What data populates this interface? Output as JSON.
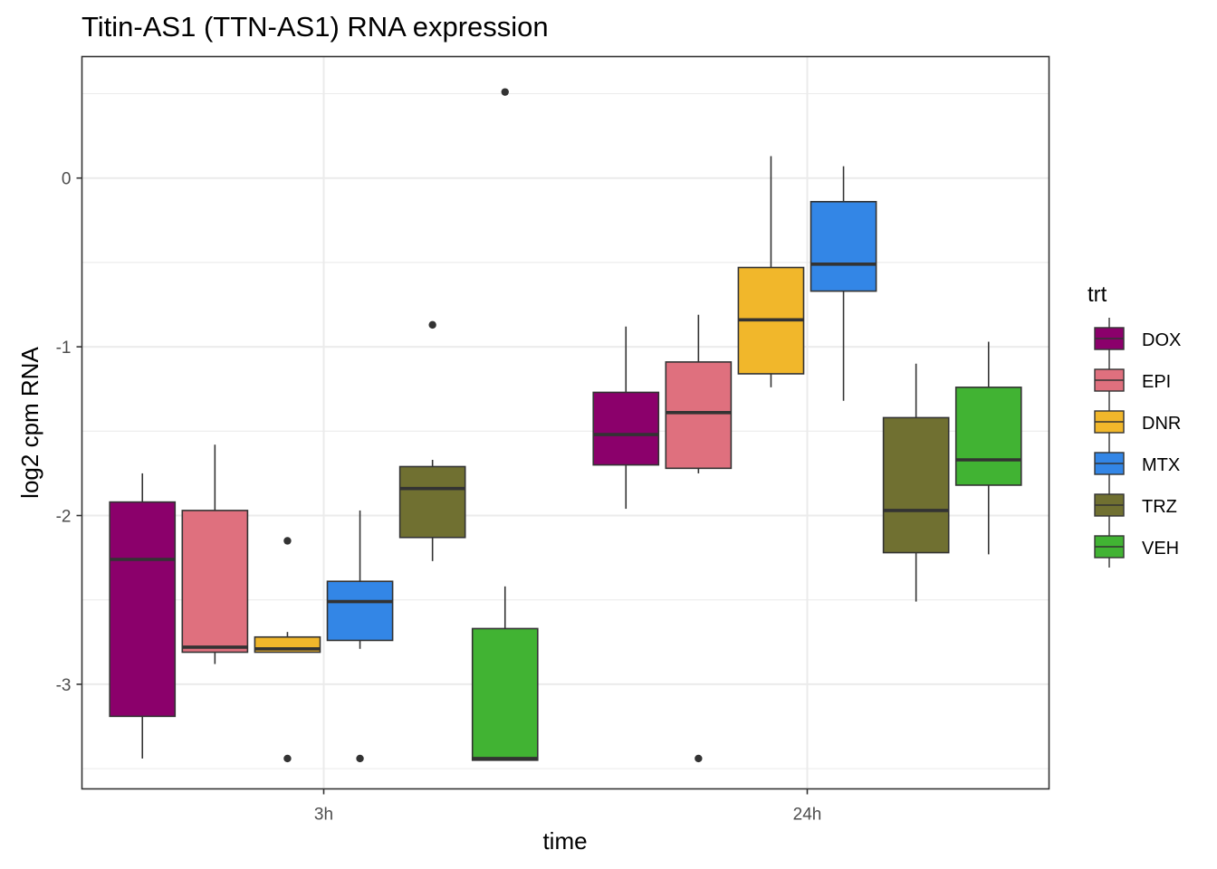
{
  "chart_data": {
    "type": "boxplot",
    "title": "Titin-AS1 (TTN-AS1) RNA expression",
    "xlabel": "time",
    "ylabel": "log2 cpm RNA",
    "categories": [
      "3h",
      "24h"
    ],
    "yticks": [
      0,
      -1,
      -2,
      -3
    ],
    "ylim": [
      -3.62,
      0.72
    ],
    "grid": true,
    "legend": {
      "title": "trt",
      "position": "right"
    },
    "series": [
      {
        "name": "DOX",
        "color": "#8B006B",
        "boxes": [
          {
            "category": "3h",
            "whisker_low": -3.44,
            "q1": -3.19,
            "median": -2.26,
            "q3": -1.92,
            "whisker_high": -1.75,
            "outliers": []
          },
          {
            "category": "24h",
            "whisker_low": -1.96,
            "q1": -1.7,
            "median": -1.52,
            "q3": -1.27,
            "whisker_high": -0.88,
            "outliers": []
          }
        ]
      },
      {
        "name": "EPI",
        "color": "#DF707E",
        "boxes": [
          {
            "category": "3h",
            "whisker_low": -2.88,
            "q1": -2.81,
            "median": -2.78,
            "q3": -1.97,
            "whisker_high": -1.58,
            "outliers": []
          },
          {
            "category": "24h",
            "whisker_low": -1.75,
            "q1": -1.72,
            "median": -1.39,
            "q3": -1.09,
            "whisker_high": -0.81,
            "outliers": [
              -3.44
            ]
          }
        ]
      },
      {
        "name": "DNR",
        "color": "#F1B72B",
        "boxes": [
          {
            "category": "3h",
            "whisker_low": -2.81,
            "q1": -2.81,
            "median": -2.79,
            "q3": -2.72,
            "whisker_high": -2.69,
            "outliers": [
              -2.15,
              -3.44
            ]
          },
          {
            "category": "24h",
            "whisker_low": -1.24,
            "q1": -1.16,
            "median": -0.84,
            "q3": -0.53,
            "whisker_high": 0.13,
            "outliers": []
          }
        ]
      },
      {
        "name": "MTX",
        "color": "#3386E6",
        "boxes": [
          {
            "category": "3h",
            "whisker_low": -2.79,
            "q1": -2.74,
            "median": -2.51,
            "q3": -2.39,
            "whisker_high": -1.97,
            "outliers": [
              -3.44
            ]
          },
          {
            "category": "24h",
            "whisker_low": -1.32,
            "q1": -0.67,
            "median": -0.51,
            "q3": -0.14,
            "whisker_high": 0.07,
            "outliers": []
          }
        ]
      },
      {
        "name": "TRZ",
        "color": "#707031",
        "boxes": [
          {
            "category": "3h",
            "whisker_low": -2.27,
            "q1": -2.13,
            "median": -1.84,
            "q3": -1.71,
            "whisker_high": -1.67,
            "outliers": [
              -0.87
            ]
          },
          {
            "category": "24h",
            "whisker_low": -2.51,
            "q1": -2.22,
            "median": -1.97,
            "q3": -1.42,
            "whisker_high": -1.1,
            "outliers": []
          }
        ]
      },
      {
        "name": "VEH",
        "color": "#41B333",
        "boxes": [
          {
            "category": "3h",
            "whisker_low": -3.45,
            "q1": -3.45,
            "median": -3.44,
            "q3": -2.67,
            "whisker_high": -2.42,
            "outliers": [
              0.51
            ]
          },
          {
            "category": "24h",
            "whisker_low": -2.23,
            "q1": -1.82,
            "median": -1.67,
            "q3": -1.24,
            "whisker_high": -0.97,
            "outliers": []
          }
        ]
      }
    ]
  }
}
